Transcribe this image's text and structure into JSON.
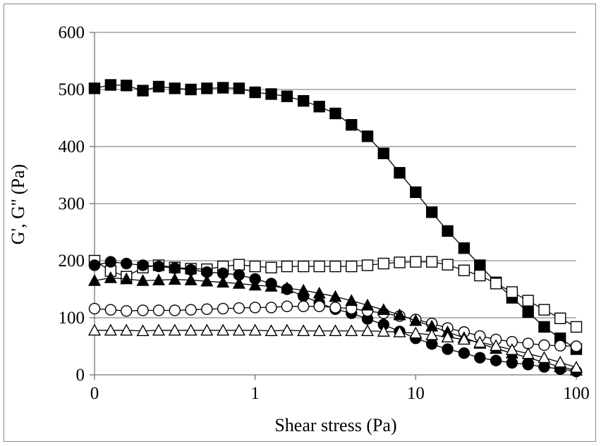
{
  "chart_data": {
    "type": "scatter",
    "title": "",
    "xlabel": "Shear stress (Pa)",
    "ylabel": "G', G'' (Pa)",
    "x_scale": "log",
    "x_tick_labels": [
      "0",
      "1",
      "10",
      "100"
    ],
    "y_ticks": [
      0,
      100,
      200,
      300,
      400,
      500,
      600
    ],
    "ylim": [
      0,
      600
    ],
    "grid": "horizontal",
    "legend": "none",
    "series": [
      {
        "marker": "square-filled",
        "x": [
          0.1,
          0.126,
          0.158,
          0.2,
          0.251,
          0.316,
          0.398,
          0.501,
          0.631,
          0.794,
          1.0,
          1.26,
          1.58,
          2.0,
          2.51,
          3.16,
          3.98,
          5.01,
          6.31,
          7.94,
          10.0,
          12.6,
          15.8,
          20.0,
          25.1,
          31.6,
          39.8,
          50.1,
          63.1,
          79.4,
          100
        ],
        "y": [
          502,
          508,
          507,
          498,
          505,
          502,
          500,
          502,
          503,
          502,
          495,
          492,
          488,
          480,
          470,
          458,
          438,
          418,
          388,
          354,
          320,
          285,
          252,
          222,
          192,
          162,
          135,
          110,
          84,
          64,
          45
        ]
      },
      {
        "marker": "square-open",
        "x": [
          0.1,
          0.126,
          0.158,
          0.2,
          0.251,
          0.316,
          0.398,
          0.501,
          0.631,
          0.794,
          1.0,
          1.26,
          1.58,
          2.0,
          2.51,
          3.16,
          3.98,
          5.01,
          6.31,
          7.94,
          10.0,
          12.6,
          15.8,
          20.0,
          25.1,
          31.6,
          39.8,
          50.1,
          63.1,
          79.4,
          100
        ],
        "y": [
          200,
          182,
          172,
          188,
          192,
          188,
          186,
          185,
          190,
          193,
          190,
          188,
          190,
          190,
          190,
          190,
          190,
          192,
          195,
          197,
          198,
          198,
          193,
          183,
          174,
          160,
          145,
          130,
          114,
          99,
          84
        ]
      },
      {
        "marker": "circle-filled",
        "x": [
          0.1,
          0.126,
          0.158,
          0.2,
          0.251,
          0.316,
          0.398,
          0.501,
          0.631,
          0.794,
          1.0,
          1.26,
          1.58,
          2.0,
          2.51,
          3.16,
          3.98,
          5.01,
          6.31,
          7.94,
          10.0,
          12.6,
          15.8,
          20.0,
          25.1,
          31.6,
          39.8,
          50.1,
          63.1,
          79.4,
          100
        ],
        "y": [
          192,
          198,
          195,
          192,
          190,
          187,
          184,
          180,
          178,
          175,
          168,
          160,
          150,
          138,
          126,
          115,
          108,
          98,
          88,
          76,
          64,
          54,
          45,
          38,
          30,
          25,
          21,
          18,
          14,
          10,
          6
        ]
      },
      {
        "marker": "circle-open",
        "x": [
          0.1,
          0.126,
          0.158,
          0.2,
          0.251,
          0.316,
          0.398,
          0.501,
          0.631,
          0.794,
          1.0,
          1.26,
          1.58,
          2.0,
          2.51,
          3.16,
          3.98,
          5.01,
          6.31,
          7.94,
          10.0,
          12.6,
          15.8,
          20.0,
          25.1,
          31.6,
          39.8,
          50.1,
          63.1,
          79.4,
          100
        ],
        "y": [
          116,
          114,
          112,
          113,
          113,
          113,
          114,
          115,
          116,
          117,
          118,
          118,
          120,
          120,
          120,
          118,
          116,
          112,
          108,
          103,
          97,
          90,
          82,
          75,
          68,
          62,
          58,
          55,
          52,
          51,
          50
        ]
      },
      {
        "marker": "triangle-filled",
        "x": [
          0.1,
          0.126,
          0.158,
          0.2,
          0.251,
          0.316,
          0.398,
          0.501,
          0.631,
          0.794,
          1.0,
          1.26,
          1.58,
          2.0,
          2.51,
          3.16,
          3.98,
          5.01,
          6.31,
          7.94,
          10.0,
          12.6,
          15.8,
          20.0,
          25.1,
          31.6,
          39.8,
          50.1,
          63.1,
          79.4,
          100
        ],
        "y": [
          165,
          170,
          168,
          165,
          166,
          167,
          166,
          164,
          162,
          160,
          157,
          155,
          152,
          148,
          143,
          137,
          130,
          122,
          114,
          105,
          95,
          85,
          75,
          65,
          55,
          46,
          38,
          30,
          22,
          14,
          8
        ]
      },
      {
        "marker": "triangle-open",
        "x": [
          0.1,
          0.126,
          0.158,
          0.2,
          0.251,
          0.316,
          0.398,
          0.501,
          0.631,
          0.794,
          1.0,
          1.26,
          1.58,
          2.0,
          2.51,
          3.16,
          3.98,
          5.01,
          6.31,
          7.94,
          10.0,
          12.6,
          15.8,
          20.0,
          25.1,
          31.6,
          39.8,
          50.1,
          63.1,
          79.4,
          100
        ],
        "y": [
          78,
          78,
          78,
          77,
          78,
          78,
          78,
          78,
          78,
          78,
          78,
          77,
          78,
          77,
          77,
          77,
          77,
          77,
          76,
          75,
          73,
          70,
          66,
          62,
          57,
          51,
          44,
          37,
          30,
          22,
          13
        ]
      }
    ]
  }
}
